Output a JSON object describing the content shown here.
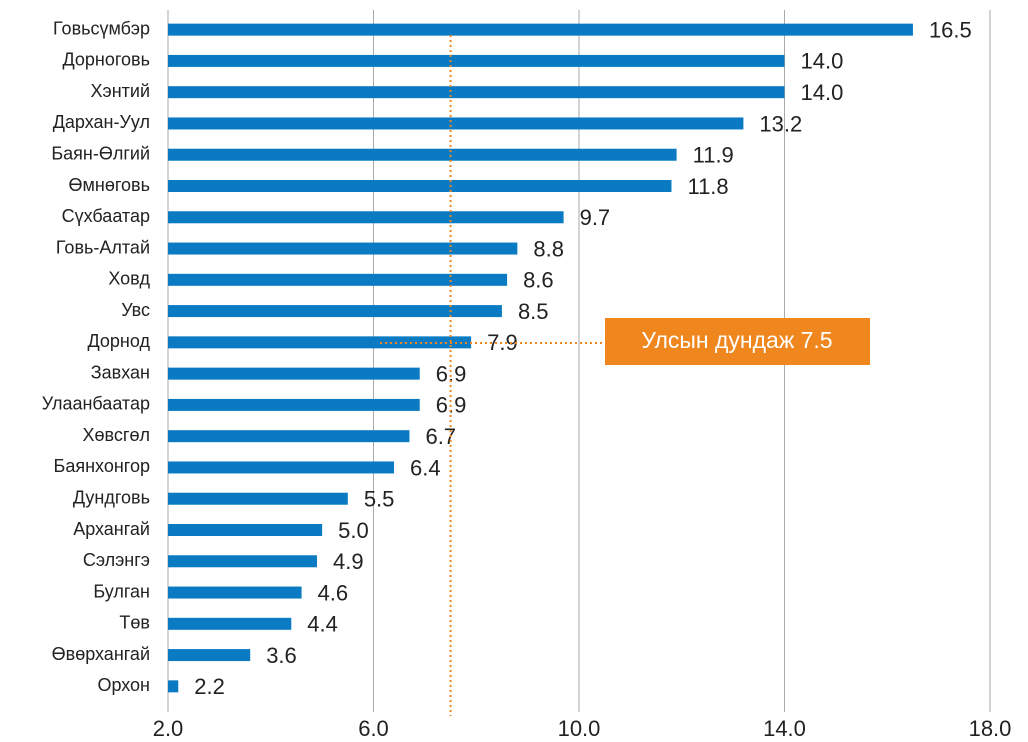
{
  "chart_data": {
    "type": "bar",
    "orientation": "horizontal",
    "categories": [
      "Говьсүмбэр",
      "Дорноговь",
      "Хэнтий",
      "Дархан-Уул",
      "Баян-Өлгий",
      "Өмнөговь",
      "Сүхбаатар",
      "Говь-Алтай",
      "Ховд",
      "Увс",
      "Дорнод",
      "Завхан",
      "Улаанбаатар",
      "Хөвсгөл",
      "Баянхонгор",
      "Дундговь",
      "Архангай",
      "Сэлэнгэ",
      "Булган",
      "Төв",
      "Өвөрхангай",
      "Орхон"
    ],
    "values": [
      16.5,
      14.0,
      14.0,
      13.2,
      11.9,
      11.8,
      9.7,
      8.8,
      8.6,
      8.5,
      7.9,
      6.9,
      6.9,
      6.7,
      6.4,
      5.5,
      5.0,
      4.9,
      4.6,
      4.4,
      3.6,
      2.2
    ],
    "value_labels": [
      "16.5",
      "14.0",
      "14.0",
      "13.2",
      "11.9",
      "11.8",
      "9.7",
      "8.8",
      "8.6",
      "8.5",
      "7.9",
      "6.9",
      "6.9",
      "6.7",
      "6.4",
      "5.5",
      "5.0",
      "4.9",
      "4.6",
      "4.4",
      "3.6",
      "2.2"
    ],
    "color": "#0a7bc2",
    "xlim": [
      2,
      18
    ],
    "xticks": [
      {
        "value": 2,
        "label": "2.0"
      },
      {
        "value": 6,
        "label": "6.0"
      },
      {
        "value": 10,
        "label": "10.0"
      },
      {
        "value": 14,
        "label": "14.0"
      },
      {
        "value": 18,
        "label": "18.0"
      }
    ],
    "grid": true,
    "reference_line": 7.5,
    "reference_color": "#f0861e",
    "annotation": "Улсын дундаж 7.5"
  }
}
